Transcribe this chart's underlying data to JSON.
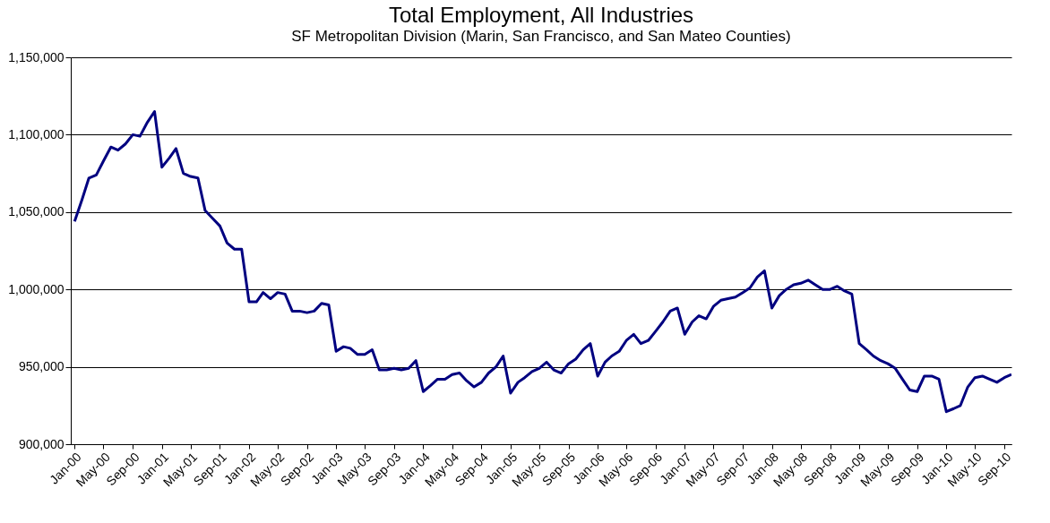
{
  "chart_data": {
    "type": "line",
    "title": "Total Employment, All Industries",
    "subtitle": "SF Metropolitan Division (Marin, San Francisco, and San Mateo Counties)",
    "x": [
      "2000-01",
      "2000-02",
      "2000-03",
      "2000-04",
      "2000-05",
      "2000-06",
      "2000-07",
      "2000-08",
      "2000-09",
      "2000-10",
      "2000-11",
      "2000-12",
      "2001-01",
      "2001-02",
      "2001-03",
      "2001-04",
      "2001-05",
      "2001-06",
      "2001-07",
      "2001-08",
      "2001-09",
      "2001-10",
      "2001-11",
      "2001-12",
      "2002-01",
      "2002-02",
      "2002-03",
      "2002-04",
      "2002-05",
      "2002-06",
      "2002-07",
      "2002-08",
      "2002-09",
      "2002-10",
      "2002-11",
      "2002-12",
      "2003-01",
      "2003-02",
      "2003-03",
      "2003-04",
      "2003-05",
      "2003-06",
      "2003-07",
      "2003-08",
      "2003-09",
      "2003-10",
      "2003-11",
      "2003-12",
      "2004-01",
      "2004-02",
      "2004-03",
      "2004-04",
      "2004-05",
      "2004-06",
      "2004-07",
      "2004-08",
      "2004-09",
      "2004-10",
      "2004-11",
      "2004-12",
      "2005-01",
      "2005-02",
      "2005-03",
      "2005-04",
      "2005-05",
      "2005-06",
      "2005-07",
      "2005-08",
      "2005-09",
      "2005-10",
      "2005-11",
      "2005-12",
      "2006-01",
      "2006-02",
      "2006-03",
      "2006-04",
      "2006-05",
      "2006-06",
      "2006-07",
      "2006-08",
      "2006-09",
      "2006-10",
      "2006-11",
      "2006-12",
      "2007-01",
      "2007-02",
      "2007-03",
      "2007-04",
      "2007-05",
      "2007-06",
      "2007-07",
      "2007-08",
      "2007-09",
      "2007-10",
      "2007-11",
      "2007-12",
      "2008-01",
      "2008-02",
      "2008-03",
      "2008-04",
      "2008-05",
      "2008-06",
      "2008-07",
      "2008-08",
      "2008-09",
      "2008-10",
      "2008-11",
      "2008-12",
      "2009-01",
      "2009-02",
      "2009-03",
      "2009-04",
      "2009-05",
      "2009-06",
      "2009-07",
      "2009-08",
      "2009-09",
      "2009-10",
      "2009-11",
      "2009-12",
      "2010-01",
      "2010-02",
      "2010-03",
      "2010-04",
      "2010-05",
      "2010-06",
      "2010-07",
      "2010-08",
      "2010-09",
      "2010-10"
    ],
    "series": [
      {
        "color": "#000080",
        "values": [
          1044000,
          1058000,
          1072000,
          1074000,
          1083000,
          1092000,
          1090000,
          1094000,
          1100000,
          1099000,
          1108000,
          1115000,
          1079000,
          1085000,
          1091000,
          1075000,
          1073000,
          1072000,
          1051000,
          1046000,
          1041000,
          1030000,
          1026000,
          1026000,
          992000,
          992000,
          998000,
          994000,
          998000,
          997000,
          986000,
          986000,
          985000,
          986000,
          991000,
          990000,
          960000,
          963000,
          962000,
          958000,
          958000,
          961000,
          948000,
          948000,
          949000,
          948000,
          949000,
          954000,
          934000,
          938000,
          942000,
          942000,
          945000,
          946000,
          941000,
          937000,
          940000,
          946000,
          950000,
          957000,
          933000,
          940000,
          943000,
          947000,
          949000,
          953000,
          948000,
          946000,
          952000,
          955000,
          961000,
          965000,
          944000,
          953000,
          957000,
          960000,
          967000,
          971000,
          965000,
          967000,
          973000,
          979000,
          986000,
          988000,
          971000,
          979000,
          983000,
          981000,
          989000,
          993000,
          994000,
          995000,
          998000,
          1001000,
          1008000,
          1012000,
          988000,
          996000,
          1000000,
          1003000,
          1004000,
          1006000,
          1003000,
          1000000,
          1000000,
          1002000,
          999000,
          997000,
          965000,
          961000,
          957000,
          954000,
          952000,
          949000,
          942000,
          935000,
          934000,
          944000,
          944000,
          942000,
          921000,
          923000,
          925000,
          937000,
          943000,
          944000,
          942000,
          940000,
          943000,
          945000
        ]
      }
    ],
    "xlim": [
      "1999-12-16",
      "2010-10"
    ],
    "xticks": [
      {
        "value": "2000-01",
        "label": "Jan-00"
      },
      {
        "value": "2000-05",
        "label": "May-00"
      },
      {
        "value": "2000-09",
        "label": "Sep-00"
      },
      {
        "value": "2001-01",
        "label": "Jan-01"
      },
      {
        "value": "2001-05",
        "label": "May-01"
      },
      {
        "value": "2001-09",
        "label": "Sep-01"
      },
      {
        "value": "2002-01",
        "label": "Jan-02"
      },
      {
        "value": "2002-05",
        "label": "May-02"
      },
      {
        "value": "2002-09",
        "label": "Sep-02"
      },
      {
        "value": "2003-01",
        "label": "Jan-03"
      },
      {
        "value": "2003-05",
        "label": "May-03"
      },
      {
        "value": "2003-09",
        "label": "Sep-03"
      },
      {
        "value": "2004-01",
        "label": "Jan-04"
      },
      {
        "value": "2004-05",
        "label": "May-04"
      },
      {
        "value": "2004-09",
        "label": "Sep-04"
      },
      {
        "value": "2005-01",
        "label": "Jan-05"
      },
      {
        "value": "2005-05",
        "label": "May-05"
      },
      {
        "value": "2005-09",
        "label": "Sep-05"
      },
      {
        "value": "2006-01",
        "label": "Jan-06"
      },
      {
        "value": "2006-05",
        "label": "May-06"
      },
      {
        "value": "2006-09",
        "label": "Sep-06"
      },
      {
        "value": "2007-01",
        "label": "Jan-07"
      },
      {
        "value": "2007-05",
        "label": "May-07"
      },
      {
        "value": "2007-09",
        "label": "Sep-07"
      },
      {
        "value": "2008-01",
        "label": "Jan-08"
      },
      {
        "value": "2008-05",
        "label": "May-08"
      },
      {
        "value": "2008-09",
        "label": "Sep-08"
      },
      {
        "value": "2009-01",
        "label": "Jan-09"
      },
      {
        "value": "2009-05",
        "label": "May-09"
      },
      {
        "value": "2009-09",
        "label": "Sep-09"
      },
      {
        "value": "2010-01",
        "label": "Jan-10"
      },
      {
        "value": "2010-05",
        "label": "May-10"
      },
      {
        "value": "2010-09",
        "label": "Sep-10"
      }
    ],
    "ylim": [
      900000,
      1150000
    ],
    "yticks": [
      {
        "value": 900000,
        "label": "900,000"
      },
      {
        "value": 950000,
        "label": "950,000"
      },
      {
        "value": 1000000,
        "label": "1,000,000"
      },
      {
        "value": 1050000,
        "label": "1,050,000"
      },
      {
        "value": 1100000,
        "label": "1,100,000"
      },
      {
        "value": 1150000,
        "label": "1,150,000"
      }
    ],
    "grid": "y",
    "marker": "none",
    "line_style": "solid"
  }
}
